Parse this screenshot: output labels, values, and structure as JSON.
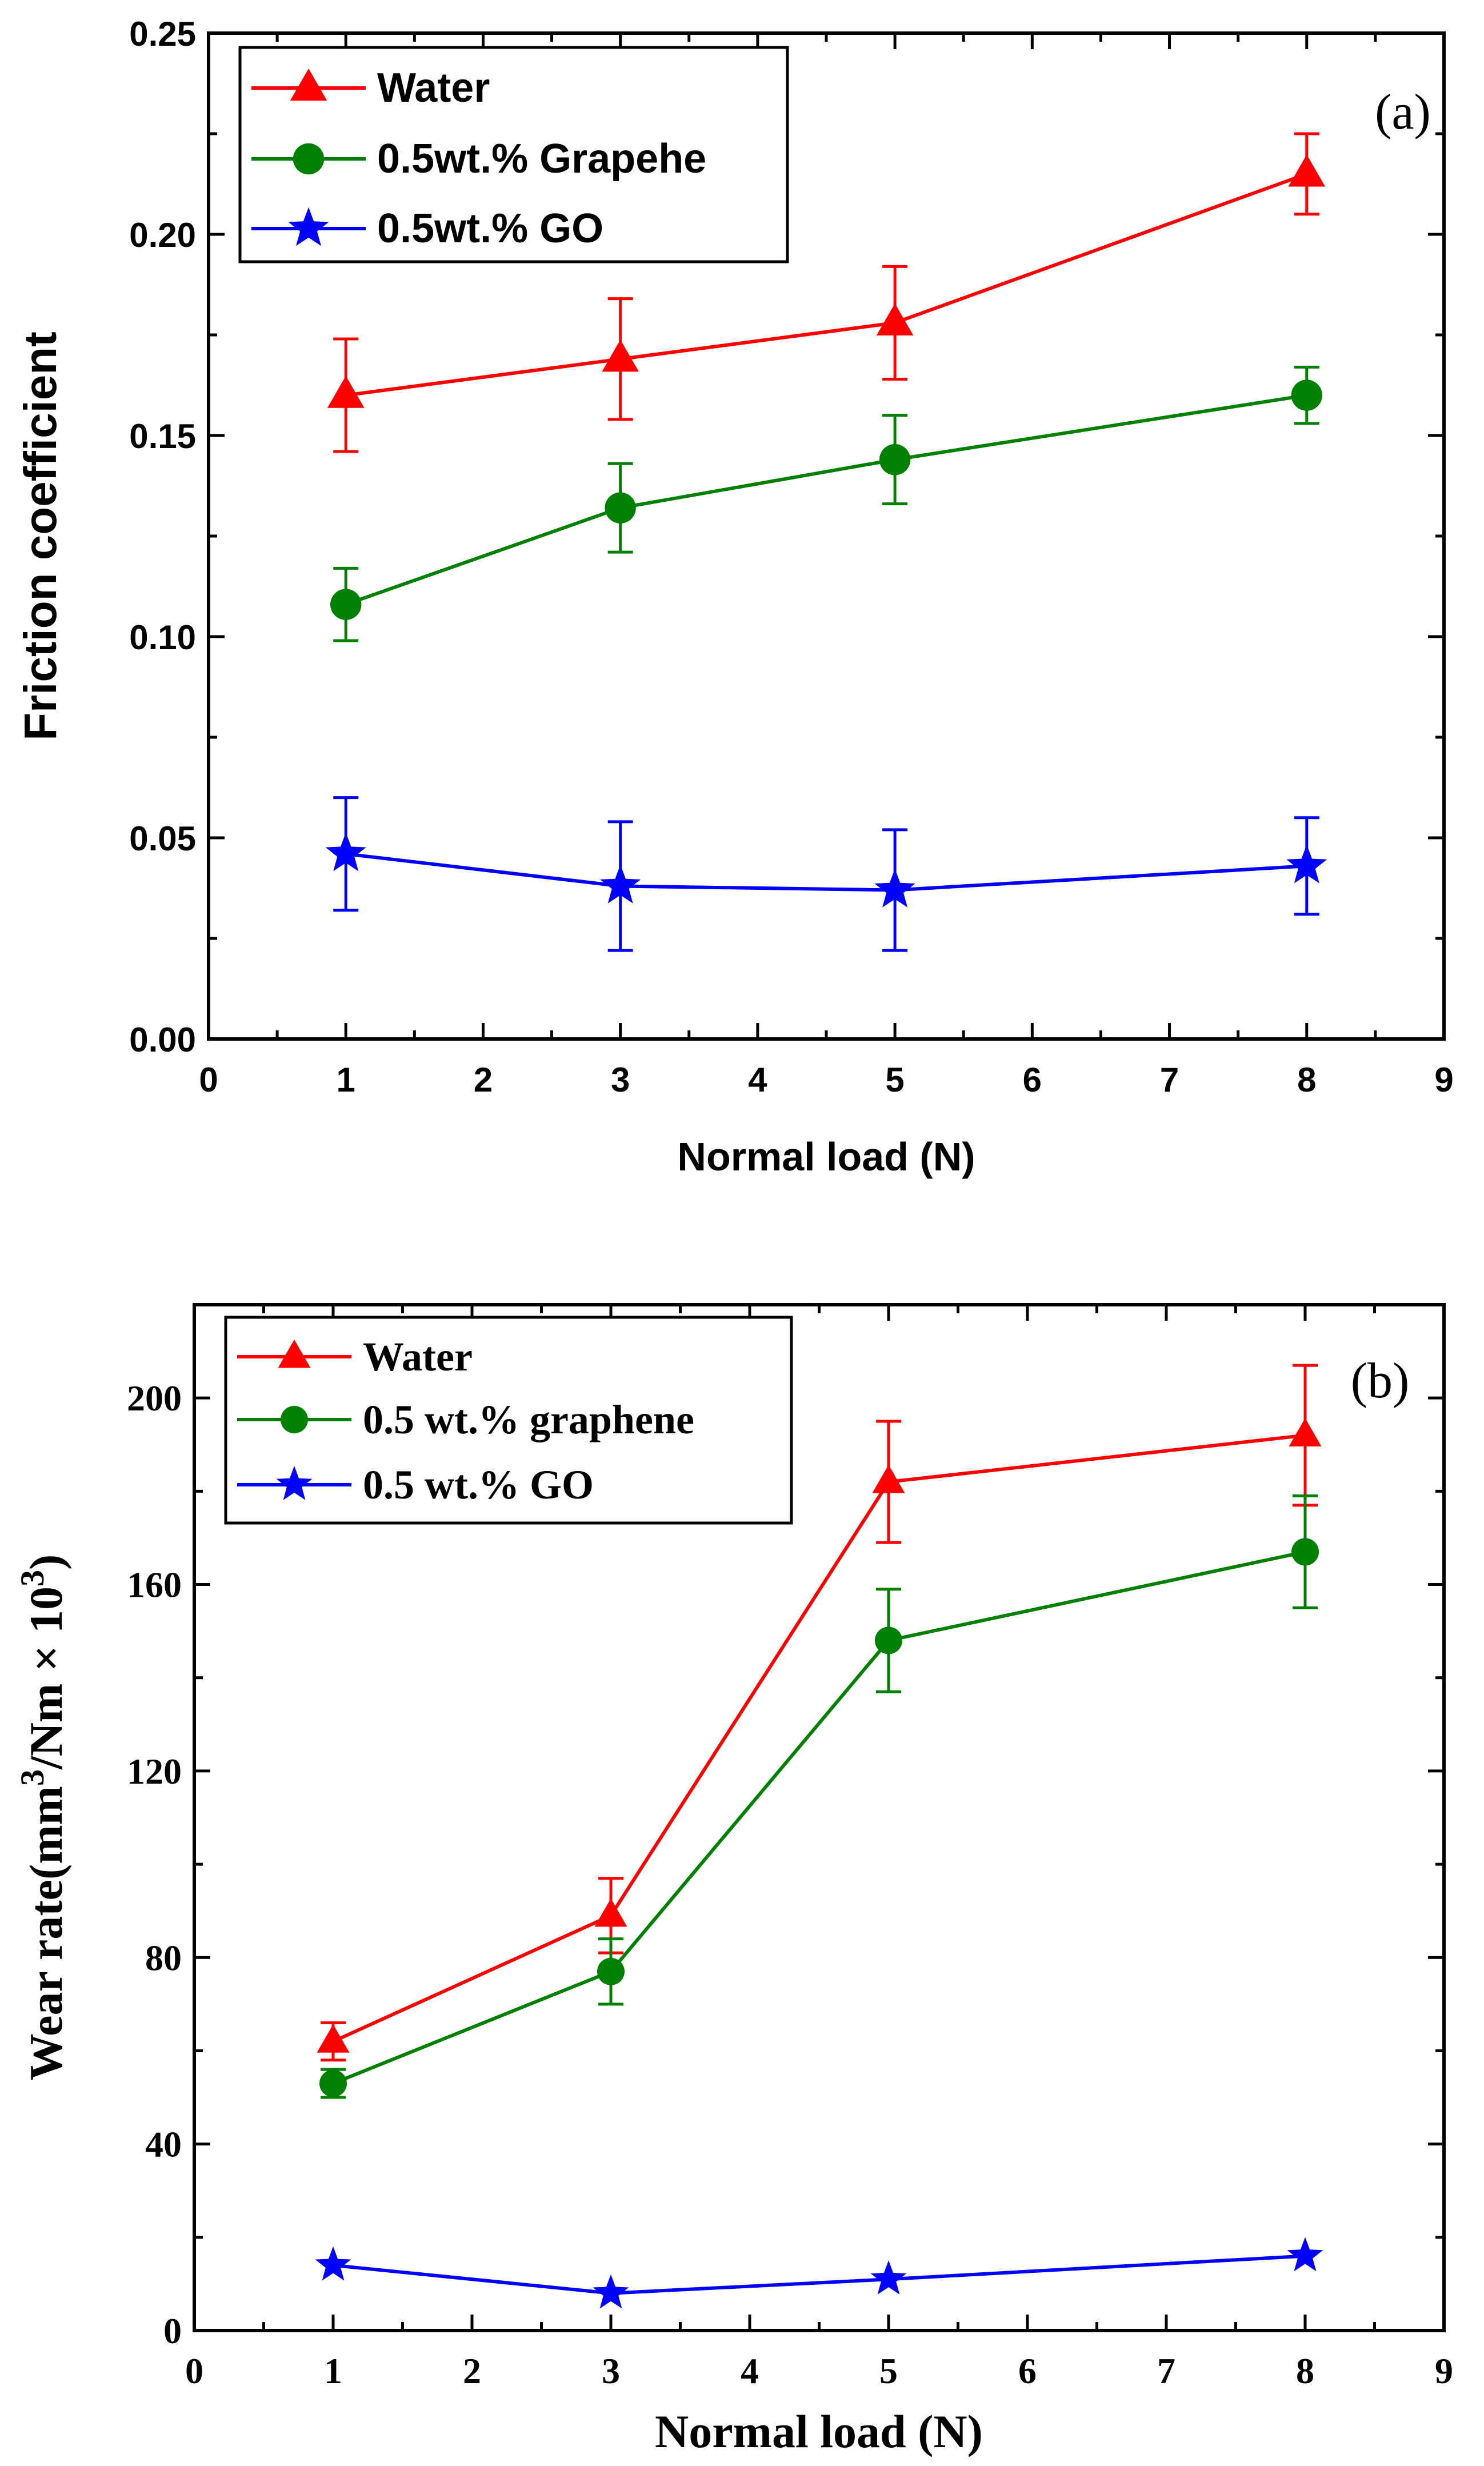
{
  "chart_data": [
    {
      "type": "line",
      "panel_label": "(a)",
      "title": "",
      "xlabel": "Normal load (N)",
      "ylabel": "Friction coefficient",
      "xlim": [
        0,
        9
      ],
      "ylim": [
        0,
        0.25
      ],
      "x_ticks": [
        "0",
        "1",
        "2",
        "3",
        "4",
        "5",
        "6",
        "7",
        "8",
        "9"
      ],
      "y_ticks": [
        "0.00",
        "0.05",
        "0.10",
        "0.15",
        "0.20",
        "0.25"
      ],
      "grid": false,
      "legend_position": "top-left",
      "x": [
        1,
        3,
        5,
        8
      ],
      "series": [
        {
          "name": "Water",
          "color": "#ff0000",
          "marker": "triangle",
          "values": [
            0.16,
            0.169,
            0.178,
            0.215
          ],
          "err": [
            0.014,
            0.015,
            0.014,
            0.01
          ]
        },
        {
          "name": "0.5wt.% Grapehe",
          "color": "#008000",
          "marker": "circle",
          "values": [
            0.108,
            0.132,
            0.144,
            0.16
          ],
          "err": [
            0.009,
            0.011,
            0.011,
            0.007
          ]
        },
        {
          "name": "0.5wt.% GO",
          "color": "#0000ff",
          "marker": "star",
          "values": [
            0.046,
            0.038,
            0.037,
            0.043
          ],
          "err": [
            0.014,
            0.016,
            0.015,
            0.012
          ]
        }
      ]
    },
    {
      "type": "line",
      "panel_label": "(b)",
      "title": "",
      "xlabel": "Normal load (N)",
      "ylabel": "Wear rate(mm³/Nm × 10³)",
      "xlim": [
        0,
        9
      ],
      "ylim": [
        0,
        220
      ],
      "x_ticks": [
        "0",
        "1",
        "2",
        "3",
        "4",
        "5",
        "6",
        "7",
        "8",
        "9"
      ],
      "y_ticks": [
        "0",
        "40",
        "80",
        "120",
        "160",
        "200"
      ],
      "grid": false,
      "legend_position": "top-left",
      "x": [
        1,
        3,
        5,
        8
      ],
      "series": [
        {
          "name": "Water",
          "color": "#ff0000",
          "marker": "triangle",
          "values": [
            62,
            89,
            182,
            192
          ],
          "err": [
            4,
            8,
            13,
            15
          ]
        },
        {
          "name": "0.5 wt.% graphene",
          "color": "#008000",
          "marker": "circle",
          "values": [
            53,
            77,
            148,
            167
          ],
          "err": [
            3,
            7,
            11,
            12
          ]
        },
        {
          "name": "0.5 wt.% GO",
          "color": "#0000ff",
          "marker": "star",
          "values": [
            14,
            8,
            11,
            16
          ],
          "err": [
            0,
            0,
            0,
            0
          ]
        }
      ]
    }
  ]
}
